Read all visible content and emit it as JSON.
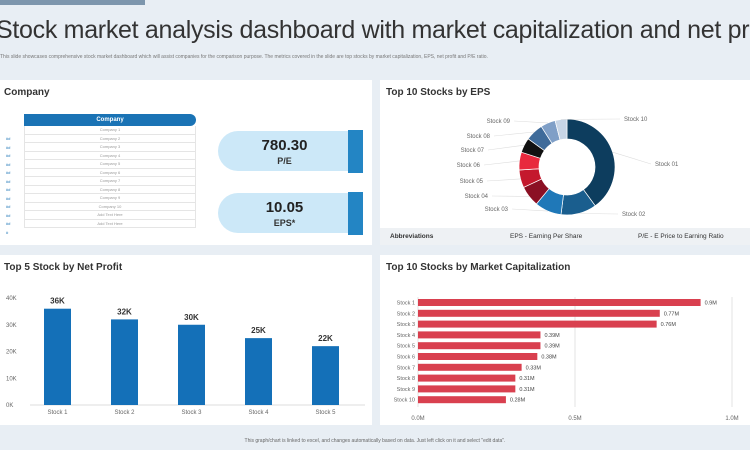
{
  "header": {
    "title": "Stock market analysis dashboard with market capitalization and net profit",
    "subtitle": "This slide showcases comprehensive stock market dashboard which will assist companies for the comparison purpose. The metrics covered in the slide are top stocks by market capitalization, EPS, net profit and P/E ratio."
  },
  "company": {
    "title": "Company",
    "header": "Company",
    "rows": [
      {
        "n": "##",
        "name": "Company 1"
      },
      {
        "n": "##",
        "name": "Company 2"
      },
      {
        "n": "##",
        "name": "Company 3"
      },
      {
        "n": "##",
        "name": "Company 4"
      },
      {
        "n": "##",
        "name": "Company 5"
      },
      {
        "n": "##",
        "name": "Company 6"
      },
      {
        "n": "##",
        "name": "Company 7"
      },
      {
        "n": "##",
        "name": "Company 8"
      },
      {
        "n": "##",
        "name": "Company 9"
      },
      {
        "n": "##",
        "name": "Company 10"
      },
      {
        "n": "##",
        "name": "Add Text Here"
      },
      {
        "n": "#",
        "name": "Add Text Here"
      }
    ],
    "kpis": [
      {
        "value": "780.30",
        "label": "P/E"
      },
      {
        "value": "10.05",
        "label": "EPS*"
      }
    ]
  },
  "abbreviations": {
    "label": "Abbreviations",
    "eps": "EPS - Earning Per Share",
    "pe": "P/E - E Price to Earning Ratio"
  },
  "footer": "This graph/chart is linked to excel, and changes automatically based on data. Just left click on it and select \"edit data\".",
  "chart_data": [
    {
      "type": "pie",
      "title": "Top 10 Stocks by EPS",
      "categories": [
        "Stock 01",
        "Stock 02",
        "Stock 03",
        "Stock 04",
        "Stock 05",
        "Stock 06",
        "Stock 07",
        "Stock 08",
        "Stock 09",
        "Stock 10"
      ],
      "values": [
        40,
        12,
        9,
        7,
        6,
        6,
        5,
        6,
        5,
        4
      ],
      "colors": [
        "#0d3d5e",
        "#1a5e8e",
        "#1f78b8",
        "#8b1024",
        "#c4182d",
        "#e8293d",
        "#111111",
        "#3f6b9a",
        "#7f9fc7",
        "#c7d5e6"
      ]
    },
    {
      "type": "bar",
      "title": "Top 5 Stock by Net Profit",
      "categories": [
        "Stock 1",
        "Stock 2",
        "Stock 3",
        "Stock 4",
        "Stock 5"
      ],
      "values": [
        36,
        32,
        30,
        25,
        22
      ],
      "labels": [
        "36K",
        "32K",
        "30K",
        "25K",
        "22K"
      ],
      "yticks": [
        "0K",
        "10K",
        "20K",
        "30K",
        "40K"
      ],
      "ylim": [
        0,
        40
      ],
      "color": "#1470b8"
    },
    {
      "type": "bar",
      "orientation": "horizontal",
      "title": "Top 10 Stocks by Market Capitalization",
      "categories": [
        "Stock 1",
        "Stock 2",
        "Stock 3",
        "Stock 4",
        "Stock 5",
        "Stock 6",
        "Stock 7",
        "Stock 8",
        "Stock 9",
        "Stock 10"
      ],
      "values": [
        0.9,
        0.77,
        0.76,
        0.39,
        0.39,
        0.38,
        0.33,
        0.31,
        0.31,
        0.28
      ],
      "labels": [
        "0.9M",
        "0.77M",
        "0.76M",
        "0.39M",
        "0.39M",
        "0.38M",
        "0.33M",
        "0.31M",
        "0.31M",
        "0.28M"
      ],
      "xticks": [
        "0.0M",
        "0.5M",
        "1.0M"
      ],
      "xlim": [
        0,
        1
      ],
      "color": "#d9404f"
    }
  ]
}
